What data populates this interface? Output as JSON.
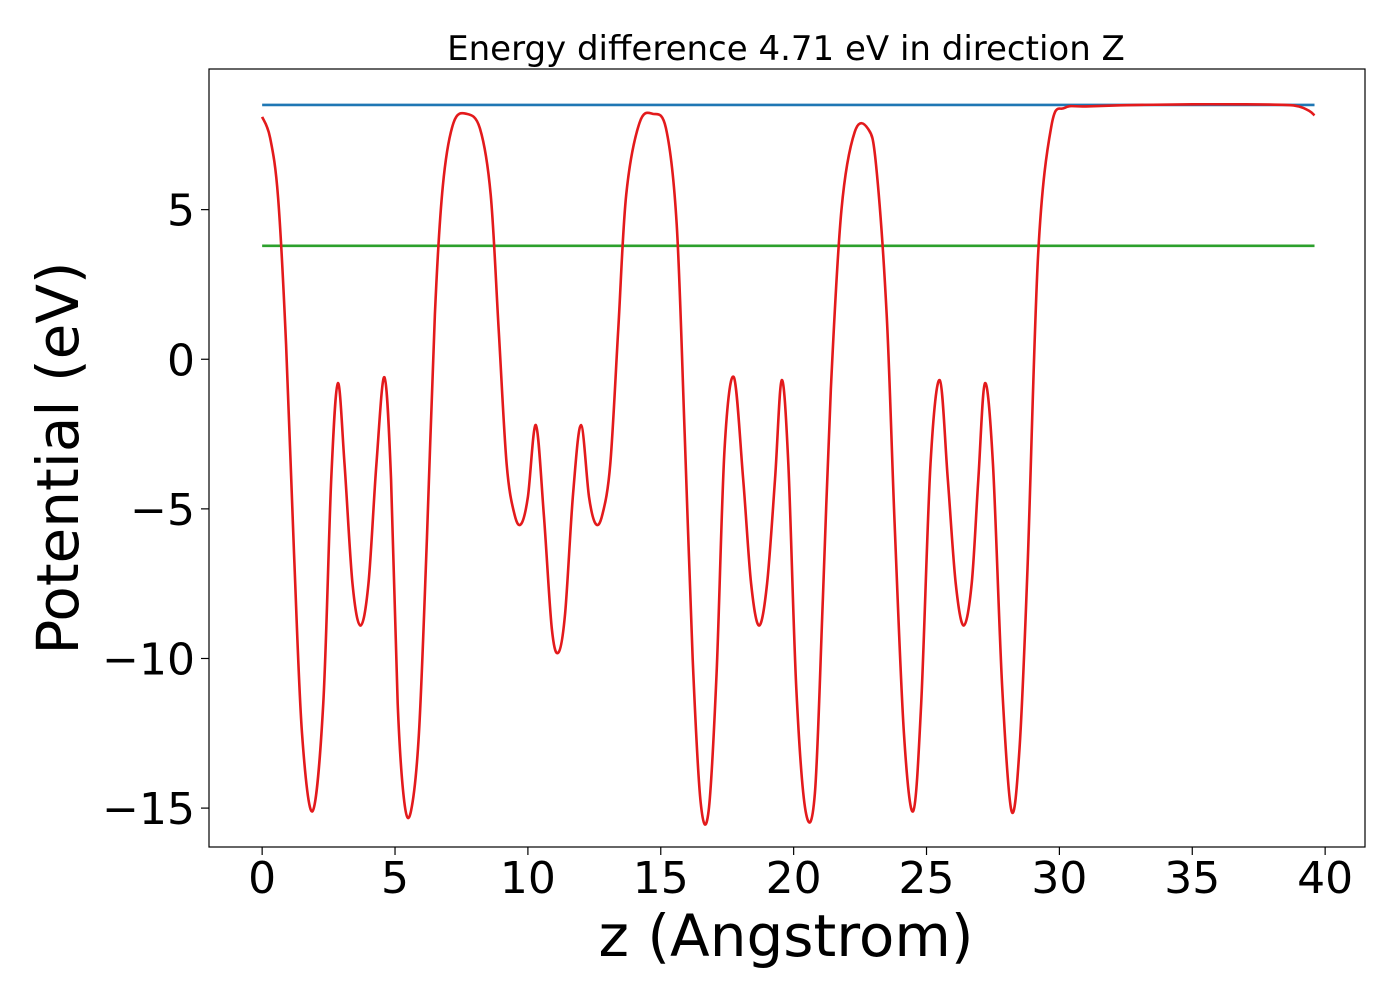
{
  "chart_data": {
    "type": "line",
    "title": "Energy difference 4.71 eV in direction Z",
    "xlabel": "z (Angstrom)",
    "ylabel": "Potential (eV)",
    "xlim": [
      -2,
      41.5
    ],
    "ylim": [
      -16.3,
      9.7
    ],
    "xticks": [
      0,
      5,
      10,
      15,
      20,
      25,
      30,
      35,
      40
    ],
    "xtick_labels": [
      "0",
      "5",
      "10",
      "15",
      "20",
      "25",
      "30",
      "35",
      "40"
    ],
    "yticks": [
      5,
      0,
      -5,
      -10,
      -15
    ],
    "ytick_labels": [
      "5",
      "0",
      "−5",
      "−10",
      "−15"
    ],
    "grid": false,
    "series": [
      {
        "color": "#1f77b4",
        "x": [
          0,
          39.6
        ],
        "y": [
          8.5,
          8.5
        ]
      },
      {
        "color": "#2ca02c",
        "x": [
          0,
          39.6
        ],
        "y": [
          3.79,
          3.79
        ]
      },
      {
        "color": "#e31a1c",
        "x": [
          0,
          0.3,
          0.6,
          0.9,
          1.2,
          1.5,
          1.9,
          2.3,
          2.6,
          2.85,
          3.1,
          3.4,
          3.7,
          4.0,
          4.3,
          4.6,
          4.85,
          5.1,
          5.35,
          5.6,
          5.9,
          6.2,
          6.5,
          6.8,
          7.2,
          7.7,
          8.2,
          8.6,
          8.9,
          9.2,
          9.5,
          9.75,
          10.0,
          10.3,
          10.6,
          10.9,
          11.15,
          11.4,
          11.7,
          12.0,
          12.3,
          12.55,
          12.8,
          13.1,
          13.4,
          13.7,
          14.2,
          14.7,
          15.2,
          15.6,
          15.9,
          16.2,
          16.5,
          16.8,
          17.1,
          17.4,
          17.75,
          18.1,
          18.4,
          18.7,
          19.0,
          19.3,
          19.55,
          19.8,
          20.1,
          20.45,
          20.8,
          21.1,
          21.4,
          21.8,
          22.3,
          22.8,
          23.1,
          23.5,
          23.8,
          24.15,
          24.5,
          24.8,
          25.15,
          25.5,
          25.8,
          26.1,
          26.4,
          26.7,
          26.95,
          27.2,
          27.5,
          27.85,
          28.2,
          28.5,
          28.8,
          29.2,
          29.7,
          30.2,
          31.0,
          33.0,
          35.0,
          37.0,
          38.5,
          39.0,
          39.4,
          39.6
        ],
        "y": [
          8.1,
          7.4,
          5.4,
          0.5,
          -6.5,
          -12.5,
          -15.1,
          -11.5,
          -4.0,
          -0.8,
          -3.5,
          -7.5,
          -8.9,
          -7.5,
          -3.5,
          -0.6,
          -4.0,
          -11.5,
          -14.8,
          -15.1,
          -12.5,
          -6.0,
          1.5,
          5.8,
          7.9,
          8.2,
          7.7,
          5.5,
          1.0,
          -3.5,
          -5.2,
          -5.5,
          -4.6,
          -2.2,
          -5.2,
          -9.0,
          -9.8,
          -8.5,
          -4.5,
          -2.2,
          -4.6,
          -5.5,
          -5.2,
          -3.5,
          1.0,
          5.5,
          7.9,
          8.2,
          7.7,
          4.5,
          -2.5,
          -10.0,
          -14.8,
          -15.1,
          -10.5,
          -3.0,
          -0.6,
          -4.0,
          -7.5,
          -8.9,
          -7.5,
          -4.0,
          -0.7,
          -3.5,
          -11.0,
          -15.1,
          -14.5,
          -8.0,
          -1.0,
          5.0,
          7.6,
          7.7,
          6.5,
          1.5,
          -5.5,
          -12.5,
          -15.1,
          -11.5,
          -3.5,
          -0.7,
          -4.0,
          -7.5,
          -8.9,
          -7.5,
          -4.0,
          -0.8,
          -3.5,
          -11.0,
          -15.1,
          -13.0,
          -7.0,
          3.5,
          7.8,
          8.4,
          8.45,
          8.5,
          8.52,
          8.52,
          8.5,
          8.45,
          8.3,
          8.15
        ]
      }
    ]
  }
}
